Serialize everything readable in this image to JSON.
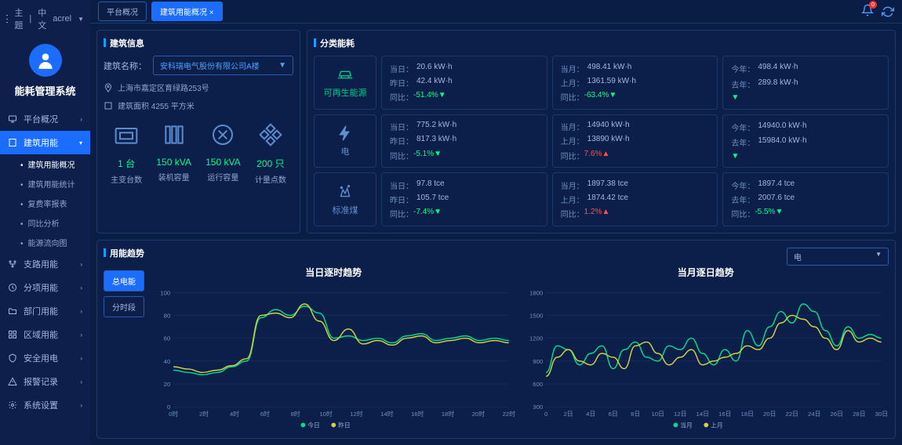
{
  "header": {
    "theme": "主题",
    "lang": "中文",
    "user": "acrel",
    "tabs": [
      {
        "label": "平台概况"
      },
      {
        "label": "建筑用能概况",
        "close": "×"
      }
    ],
    "notif_count": "0"
  },
  "sidebar": {
    "title": "能耗管理系统",
    "items": [
      {
        "label": "平台概况",
        "icon": "monitor"
      },
      {
        "label": "建筑用能",
        "icon": "building",
        "active": true,
        "subs": [
          {
            "label": "建筑用能概况",
            "active": true
          },
          {
            "label": "建筑用能统计"
          },
          {
            "label": "复费率报表"
          },
          {
            "label": "同比分析"
          },
          {
            "label": "能源流向图"
          }
        ]
      },
      {
        "label": "支路用能",
        "icon": "branch"
      },
      {
        "label": "分项用能",
        "icon": "clock"
      },
      {
        "label": "部门用能",
        "icon": "folder"
      },
      {
        "label": "区域用能",
        "icon": "grid"
      },
      {
        "label": "安全用电",
        "icon": "shield"
      },
      {
        "label": "报警记录",
        "icon": "alert"
      },
      {
        "label": "系统设置",
        "icon": "gear"
      }
    ]
  },
  "building_info": {
    "title": "建筑信息",
    "name_label": "建筑名称：",
    "name_value": "安科瑞电气股份有限公司A楼",
    "address": "上海市嘉定区育绿路253号",
    "area": "建筑面积 4255 平方米",
    "stats": [
      {
        "val": "1 台",
        "lbl": "主变台数"
      },
      {
        "val": "150 kVA",
        "lbl": "装机容量"
      },
      {
        "val": "150 kVA",
        "lbl": "运行容量"
      },
      {
        "val": "200 只",
        "lbl": "计量点数"
      }
    ]
  },
  "energy": {
    "title": "分类能耗",
    "cats": [
      {
        "label": "可再生能源",
        "color": "green"
      },
      {
        "label": "电"
      },
      {
        "label": "标准煤"
      }
    ],
    "rows": [
      [
        {
          "d": "当日：",
          "dv": "20.6 kW·h",
          "y": "昨日：",
          "yv": "42.4 kW·h",
          "c": "同比：",
          "cv": "-51.4%",
          "dir": "down"
        },
        {
          "d": "当月：",
          "dv": "498.41 kW·h",
          "y": "上月：",
          "yv": "1361.59 kW·h",
          "c": "同比：",
          "cv": "-63.4%",
          "dir": "down"
        },
        {
          "d": "今年：",
          "dv": "498.4 kW·h",
          "y": "去年：",
          "yv": "289.8 kW·h",
          "c": "",
          "cv": "",
          "dir": "down"
        }
      ],
      [
        {
          "d": "当日：",
          "dv": "775.2 kW·h",
          "y": "昨日：",
          "yv": "817.3 kW·h",
          "c": "同比：",
          "cv": "-5.1%",
          "dir": "down"
        },
        {
          "d": "当月：",
          "dv": "14940 kW·h",
          "y": "上月：",
          "yv": "13890 kW·h",
          "c": "同比：",
          "cv": "7.6%",
          "dir": "up"
        },
        {
          "d": "今年：",
          "dv": "14940.0 kW·h",
          "y": "去年：",
          "yv": "15984.0 kW·h",
          "c": "",
          "cv": "",
          "dir": "down"
        }
      ],
      [
        {
          "d": "当日：",
          "dv": "97.8 tce",
          "y": "昨日：",
          "yv": "105.7 tce",
          "c": "同比：",
          "cv": "-7.4%",
          "dir": "down"
        },
        {
          "d": "当月：",
          "dv": "1897.38 tce",
          "y": "上月：",
          "yv": "1874.42 tce",
          "c": "同比：",
          "cv": "1.2%",
          "dir": "up"
        },
        {
          "d": "今年：",
          "dv": "1897.4 tce",
          "y": "去年：",
          "yv": "2007.6 tce",
          "c": "同比：",
          "cv": "-5.5%",
          "dir": "down"
        }
      ]
    ]
  },
  "trend": {
    "title": "用能趋势",
    "selector": "电",
    "tabs": [
      {
        "label": "总电能",
        "active": true
      },
      {
        "label": "分时段"
      }
    ],
    "chart1": {
      "title": "当日逐时趋势",
      "xlabels": [
        "0时",
        "2时",
        "4时",
        "6时",
        "8时",
        "10时",
        "12时",
        "14时",
        "16时",
        "18时",
        "20时",
        "22时"
      ],
      "ylim": [
        0,
        100
      ],
      "ytick": 20,
      "legend": [
        {
          "label": "今日",
          "color": "#00dd88"
        },
        {
          "label": "昨日",
          "color": "#d4d040"
        }
      ],
      "series1": [
        32,
        30,
        28,
        30,
        35,
        40,
        78,
        85,
        80,
        88,
        82,
        60,
        62,
        58,
        60,
        56,
        62,
        64,
        58,
        60,
        62,
        58,
        60,
        58
      ],
      "series2": [
        35,
        33,
        30,
        32,
        36,
        42,
        80,
        82,
        78,
        90,
        75,
        58,
        68,
        55,
        58,
        54,
        60,
        62,
        56,
        58,
        60,
        56,
        58,
        56
      ]
    },
    "chart2": {
      "title": "当月逐日趋势",
      "xlabels": [
        "0",
        "2日",
        "4日",
        "6日",
        "8日",
        "10日",
        "12日",
        "14日",
        "16日",
        "18日",
        "20日",
        "22日",
        "24日",
        "26日",
        "28日",
        "30日"
      ],
      "ylim": [
        300,
        1800
      ],
      "ytick": 300,
      "legend": [
        {
          "label": "当月",
          "color": "#00dd88"
        },
        {
          "label": "上月",
          "color": "#d4d040"
        }
      ],
      "series1": [
        750,
        1100,
        1050,
        850,
        1000,
        1100,
        800,
        1050,
        1150,
        950,
        900,
        1100,
        1050,
        1200,
        1000,
        850,
        1050,
        900,
        1300,
        1100,
        1350,
        1550,
        1400,
        1650,
        1550,
        1300,
        1100,
        1350,
        1200,
        1250,
        1200
      ],
      "series2": [
        700,
        950,
        1050,
        900,
        850,
        1000,
        950,
        800,
        1100,
        1150,
        1000,
        850,
        950,
        1050,
        850,
        900,
        950,
        1000,
        1100,
        1050,
        1200,
        1400,
        1500,
        1450,
        1350,
        1200,
        1050,
        1300,
        1150,
        1200,
        1150
      ]
    }
  }
}
